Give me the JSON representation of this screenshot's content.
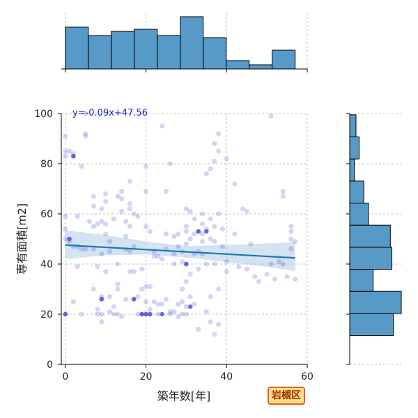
{
  "colors": {
    "hist_fill": "#5799c7",
    "point": "#3a3fd6",
    "reg_line": "#1f77b4",
    "ci_band": "#a8c8e4",
    "equation": "#1a22c8",
    "badge_border": "#e8601c",
    "badge_fill": "#ffe08a"
  },
  "ward_label": "岩槻区",
  "chart_data": {
    "type": "scatter",
    "xlabel": "築年数[年]",
    "ylabel": "専有面積[m2]",
    "xlim": [
      -1,
      60
    ],
    "ylim": [
      0,
      100
    ],
    "xticks": [
      0,
      20,
      40,
      60
    ],
    "yticks": [
      0,
      20,
      40,
      60,
      80,
      100
    ],
    "grid": true,
    "regression": {
      "equation": "y=-0.09x+47.56",
      "slope": -0.09,
      "intercept": 47.56,
      "x_range": [
        0,
        57
      ],
      "ci_lower": [
        [
          0,
          42.0
        ],
        [
          10,
          43.5
        ],
        [
          20,
          43.8
        ],
        [
          30,
          42.6
        ],
        [
          40,
          40.8
        ],
        [
          50,
          38.9
        ],
        [
          57,
          37.2
        ]
      ],
      "ci_upper": [
        [
          0,
          53.5
        ],
        [
          10,
          51.5
        ],
        [
          20,
          49.0
        ],
        [
          30,
          47.2
        ],
        [
          40,
          47.6
        ],
        [
          50,
          48.2
        ],
        [
          57,
          48.8
        ]
      ]
    },
    "points": [
      [
        0,
        91
      ],
      [
        1,
        85
      ],
      [
        0,
        85
      ],
      [
        2,
        84
      ],
      [
        2,
        83
      ],
      [
        0,
        83
      ],
      [
        0,
        59
      ],
      [
        0,
        54
      ],
      [
        0,
        50
      ],
      [
        1,
        49
      ],
      [
        2,
        47
      ],
      [
        0,
        20
      ],
      [
        2,
        25
      ],
      [
        3,
        59
      ],
      [
        3,
        47
      ],
      [
        3,
        39
      ],
      [
        4,
        79
      ],
      [
        4,
        46
      ],
      [
        4,
        20
      ],
      [
        5,
        92
      ],
      [
        5,
        91
      ],
      [
        5,
        46
      ],
      [
        5,
        100
      ],
      [
        6,
        57
      ],
      [
        7,
        67
      ],
      [
        7,
        63
      ],
      [
        7,
        55
      ],
      [
        7,
        30
      ],
      [
        7,
        46
      ],
      [
        8,
        56
      ],
      [
        8,
        39
      ],
      [
        8,
        22
      ],
      [
        8,
        20
      ],
      [
        9,
        62
      ],
      [
        9,
        57
      ],
      [
        9,
        44
      ],
      [
        9,
        27
      ],
      [
        9,
        26
      ],
      [
        9,
        20
      ],
      [
        9,
        17
      ],
      [
        10,
        68
      ],
      [
        10,
        65
      ],
      [
        10,
        56
      ],
      [
        10,
        52
      ],
      [
        10,
        37
      ],
      [
        11,
        49
      ],
      [
        11,
        45
      ],
      [
        11,
        27
      ],
      [
        11,
        21
      ],
      [
        12,
        23
      ],
      [
        12,
        20
      ],
      [
        12,
        58
      ],
      [
        13,
        67
      ],
      [
        13,
        40
      ],
      [
        13,
        32
      ],
      [
        13,
        30
      ],
      [
        13,
        20
      ],
      [
        14,
        69
      ],
      [
        14,
        66
      ],
      [
        14,
        61
      ],
      [
        14,
        19
      ],
      [
        15,
        57
      ],
      [
        15,
        51
      ],
      [
        15,
        46
      ],
      [
        15,
        26
      ],
      [
        16,
        73
      ],
      [
        16,
        64
      ],
      [
        16,
        62
      ],
      [
        16,
        55
      ],
      [
        16,
        45
      ],
      [
        16,
        37
      ],
      [
        17,
        26
      ],
      [
        17,
        60
      ],
      [
        17,
        47
      ],
      [
        17,
        37
      ],
      [
        18,
        59
      ],
      [
        18,
        27
      ],
      [
        18,
        20
      ],
      [
        19,
        30
      ],
      [
        19,
        20
      ],
      [
        19,
        38
      ],
      [
        20,
        31
      ],
      [
        20,
        25
      ],
      [
        20,
        20
      ],
      [
        20,
        69
      ],
      [
        20,
        79
      ],
      [
        20,
        55
      ],
      [
        21,
        53
      ],
      [
        21,
        31
      ],
      [
        21,
        22
      ],
      [
        21,
        20
      ],
      [
        22,
        45
      ],
      [
        22,
        43
      ],
      [
        22,
        25
      ],
      [
        23,
        43
      ],
      [
        23,
        20
      ],
      [
        23,
        24
      ],
      [
        24,
        95
      ],
      [
        24,
        42
      ],
      [
        24,
        24
      ],
      [
        25,
        69
      ],
      [
        25,
        52
      ],
      [
        25,
        46
      ],
      [
        25,
        26
      ],
      [
        26,
        80
      ],
      [
        26,
        21
      ],
      [
        26,
        20
      ],
      [
        27,
        51
      ],
      [
        27,
        44
      ],
      [
        27,
        40
      ],
      [
        27,
        21
      ],
      [
        28,
        47
      ],
      [
        28,
        24
      ],
      [
        28,
        19
      ],
      [
        28,
        52
      ],
      [
        29,
        45
      ],
      [
        29,
        41
      ],
      [
        29,
        30
      ],
      [
        29,
        25
      ],
      [
        29,
        20
      ],
      [
        30,
        62
      ],
      [
        30,
        55
      ],
      [
        30,
        53
      ],
      [
        30,
        48
      ],
      [
        30,
        40
      ],
      [
        30,
        33
      ],
      [
        30,
        23
      ],
      [
        30,
        20
      ],
      [
        31,
        61
      ],
      [
        31,
        50
      ],
      [
        31,
        36
      ],
      [
        31,
        27
      ],
      [
        32,
        58
      ],
      [
        32,
        52
      ],
      [
        32,
        44
      ],
      [
        32,
        24
      ],
      [
        33,
        53
      ],
      [
        33,
        45
      ],
      [
        33,
        38
      ],
      [
        33,
        14
      ],
      [
        34,
        60
      ],
      [
        34,
        56
      ],
      [
        34,
        52
      ],
      [
        34,
        49
      ],
      [
        34,
        44
      ],
      [
        35,
        76
      ],
      [
        35,
        54
      ],
      [
        35,
        40
      ],
      [
        35,
        21
      ],
      [
        36,
        78
      ],
      [
        36,
        58
      ],
      [
        36,
        50
      ],
      [
        36,
        27
      ],
      [
        36,
        17
      ],
      [
        37,
        88
      ],
      [
        37,
        81
      ],
      [
        37,
        55
      ],
      [
        37,
        49
      ],
      [
        37,
        40
      ],
      [
        37,
        12
      ],
      [
        38,
        92
      ],
      [
        38,
        85
      ],
      [
        38,
        60
      ],
      [
        38,
        30
      ],
      [
        38,
        16
      ],
      [
        39,
        54
      ],
      [
        39,
        47
      ],
      [
        40,
        82
      ],
      [
        40,
        41
      ],
      [
        40,
        37
      ],
      [
        42,
        72
      ],
      [
        42,
        52
      ],
      [
        43,
        39
      ],
      [
        44,
        62
      ],
      [
        45,
        61
      ],
      [
        45,
        38
      ],
      [
        46,
        48
      ],
      [
        47,
        35
      ],
      [
        48,
        33
      ],
      [
        50,
        36
      ],
      [
        51,
        99
      ],
      [
        51,
        40
      ],
      [
        52,
        34
      ],
      [
        53,
        41
      ],
      [
        54,
        69
      ],
      [
        54,
        67
      ],
      [
        54,
        40
      ],
      [
        55,
        35
      ],
      [
        56,
        55
      ],
      [
        56,
        53
      ],
      [
        56,
        46
      ],
      [
        56,
        50
      ],
      [
        57,
        49
      ],
      [
        57,
        34
      ]
    ],
    "dark_points": [
      [
        2,
        83
      ],
      [
        0,
        20
      ],
      [
        1,
        50
      ],
      [
        9,
        26
      ],
      [
        17,
        26
      ],
      [
        19,
        20
      ],
      [
        20,
        20
      ],
      [
        21,
        20
      ],
      [
        24,
        20
      ],
      [
        30,
        40
      ],
      [
        31,
        23
      ],
      [
        33,
        53
      ],
      [
        35,
        53
      ]
    ],
    "hist_x": {
      "bins": [
        [
          0,
          5.7
        ],
        [
          5.7,
          11.4
        ],
        [
          11.4,
          17.1
        ],
        [
          17.1,
          22.8
        ],
        [
          22.8,
          28.5
        ],
        [
          28.5,
          34.2
        ],
        [
          34.2,
          39.9
        ],
        [
          39.9,
          45.6
        ],
        [
          45.6,
          51.3
        ],
        [
          51.3,
          57
        ]
      ],
      "counts": [
        20,
        16,
        18,
        19,
        16,
        25,
        15,
        4,
        2,
        9
      ]
    },
    "hist_y": {
      "bins": [
        [
          11.5,
          20.3
        ],
        [
          20.3,
          29.1
        ],
        [
          29.1,
          37.9
        ],
        [
          37.9,
          46.7
        ],
        [
          46.7,
          55.5
        ],
        [
          55.5,
          64.3
        ],
        [
          64.3,
          73.1
        ],
        [
          73.1,
          81.9
        ],
        [
          81.9,
          90.7
        ],
        [
          90.7,
          99.5
        ]
      ],
      "counts": [
        28,
        33,
        15,
        27,
        26,
        12,
        9,
        3,
        6,
        4
      ]
    }
  }
}
